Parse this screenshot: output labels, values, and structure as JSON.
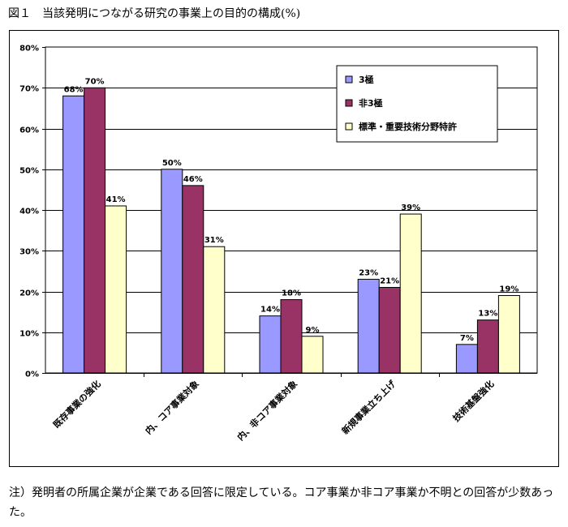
{
  "figure_title": "図１　当該発明につながる研究の事業上の目的の構成(%)",
  "footnote": "注）発明者の所属企業が企業である回答に限定している。コア事業か非コア事業か不明との回答が少数あった。",
  "chart_data": {
    "type": "bar",
    "categories": [
      "既存事業の強化",
      "内、コア事業対象",
      "内、非コア事業対象",
      "新規事業立ち上げ",
      "技術基盤強化"
    ],
    "series": [
      {
        "name": "3極",
        "color": "#9999ff",
        "values": [
          68,
          50,
          14,
          23,
          7
        ],
        "labels": [
          "68%",
          "50%",
          "14%",
          "23%",
          "7%"
        ]
      },
      {
        "name": "非3極",
        "color": "#993366",
        "values": [
          70,
          46,
          18,
          21,
          13
        ],
        "labels": [
          "70%",
          "46%",
          "18%",
          "21%",
          "13%"
        ]
      },
      {
        "name": "標準・重要技術分野特許",
        "color": "#ffffcc",
        "values": [
          41,
          31,
          9,
          39,
          19
        ],
        "labels": [
          "41%",
          "31%",
          "9%",
          "39%",
          "19%"
        ]
      }
    ],
    "ylim": [
      0,
      80
    ],
    "yticks": [
      "0%",
      "10%",
      "20%",
      "30%",
      "40%",
      "50%",
      "60%",
      "70%",
      "80%"
    ],
    "grid": true,
    "legend_position": "top-right",
    "plot_background": "#ffffff",
    "gridline_color": "#000000"
  }
}
